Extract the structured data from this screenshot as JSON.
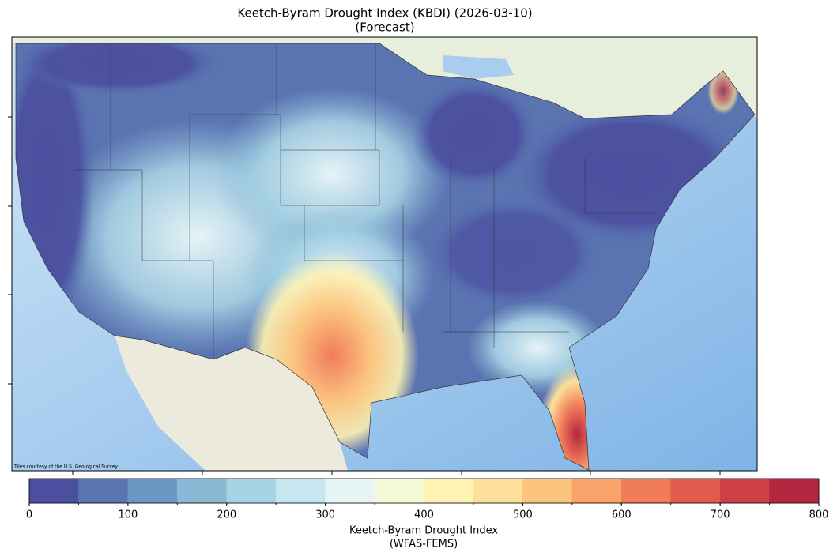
{
  "title": [
    "Keetch-Byram Drought Index (KBDI) (2026-03-10)",
    "(Forecast)"
  ],
  "attribution": "Tiles courtesy of the U.S. Geological Survey",
  "colorbar": {
    "label": [
      "Keetch-Byram Drought Index",
      "(WFAS-FEMS)"
    ],
    "lim": [
      0,
      800
    ],
    "ticks": [
      0,
      100,
      200,
      300,
      400,
      500,
      600,
      700,
      800
    ],
    "boundaries": [
      0,
      50,
      100,
      150,
      200,
      250,
      300,
      350,
      400,
      450,
      500,
      550,
      600,
      650,
      700,
      750,
      800
    ],
    "colors": [
      "#4b4f9f",
      "#5a73b1",
      "#6b98c3",
      "#8ab9d6",
      "#a8d3e5",
      "#c8e6ef",
      "#e6f4f6",
      "#f4fad8",
      "#fef3b2",
      "#fde09a",
      "#fcc47f",
      "#f9a36b",
      "#f07c5a",
      "#e35b4d",
      "#cf3f44",
      "#b42640"
    ]
  }
}
